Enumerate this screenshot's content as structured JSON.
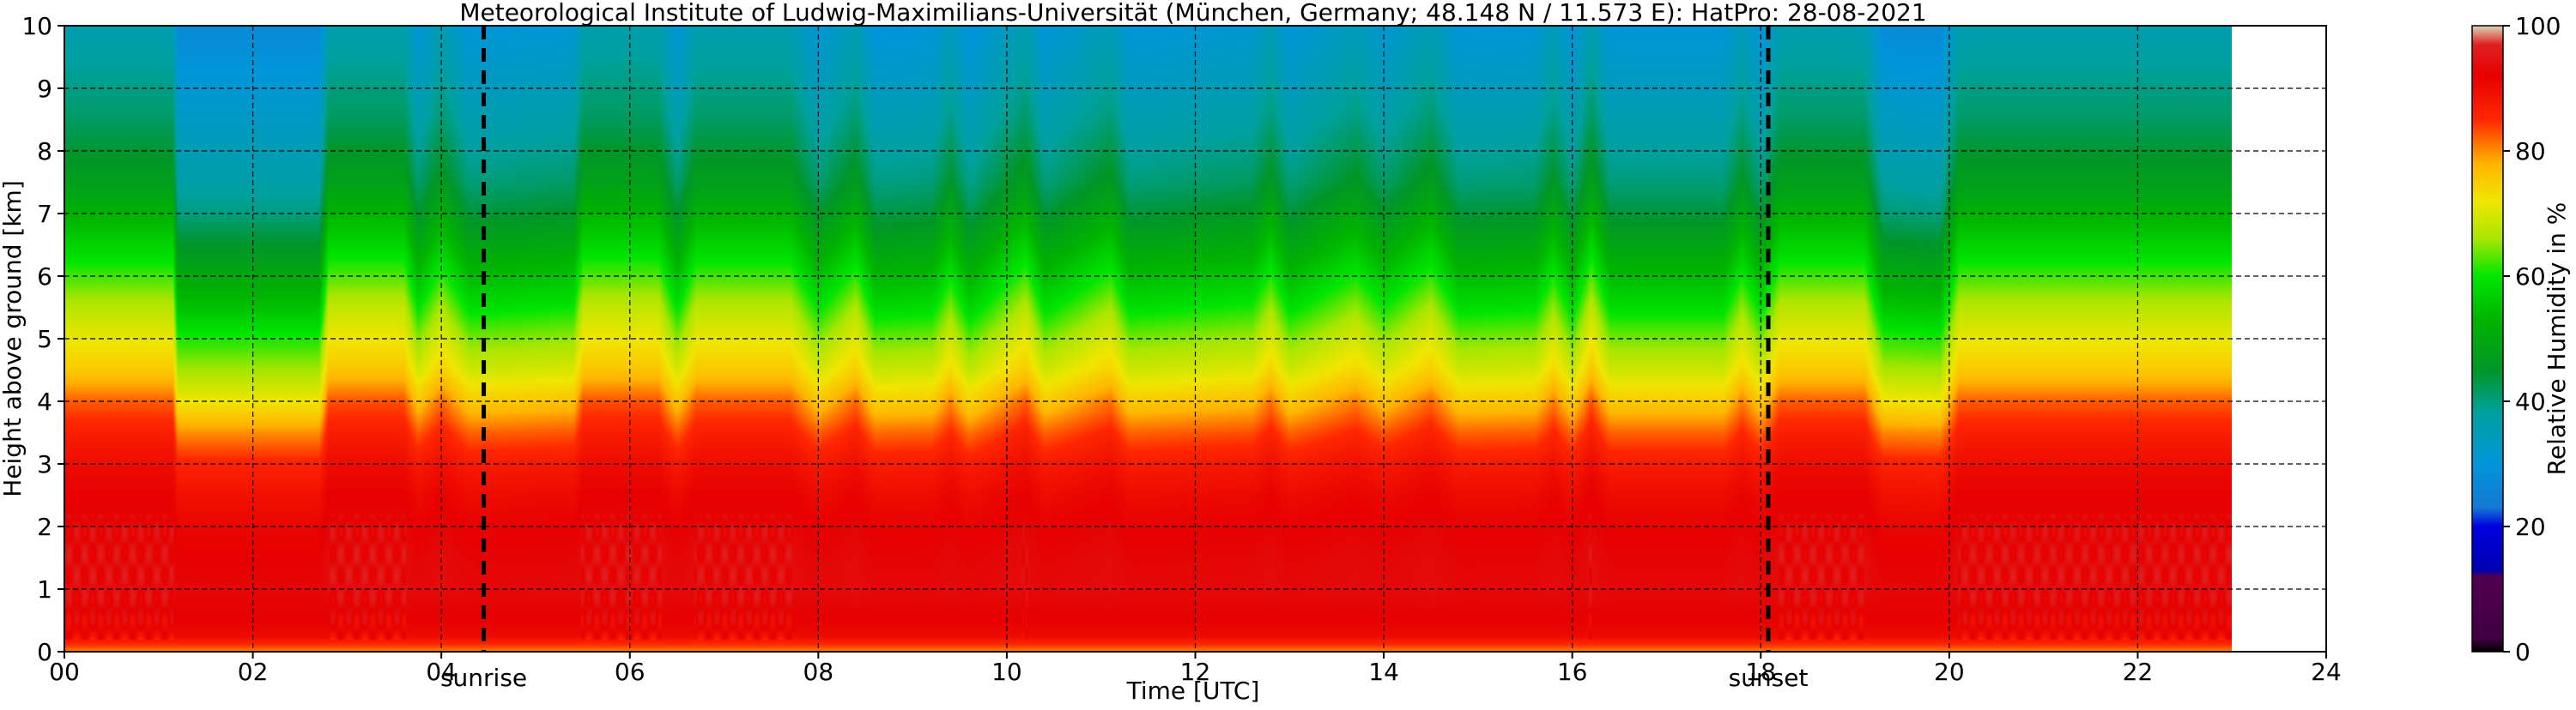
{
  "chart_data": {
    "type": "heatmap",
    "title": "Meteorological Institute of Ludwig-Maximilians-Universität (München, Germany; 48.148 N / 11.573 E):    HatPro: 28-08-2021",
    "xlabel": "Time [UTC]",
    "ylabel": "Height above ground [km]",
    "colorbar_label": "Relative Humidity in %",
    "xlim": [
      0,
      24
    ],
    "ylim": [
      0,
      10
    ],
    "data_extent_hours": [
      0,
      23
    ],
    "xticks": [
      0,
      2,
      4,
      6,
      8,
      10,
      12,
      14,
      16,
      18,
      20,
      22,
      24
    ],
    "xtick_labels": [
      "00",
      "02",
      "04",
      "06",
      "08",
      "10",
      "12",
      "14",
      "16",
      "18",
      "20",
      "22",
      "24"
    ],
    "yticks": [
      0,
      1,
      2,
      3,
      4,
      5,
      6,
      7,
      8,
      9,
      10
    ],
    "ytick_labels": [
      "0",
      "1",
      "2",
      "3",
      "4",
      "5",
      "6",
      "7",
      "8",
      "9",
      "10"
    ],
    "grid": true,
    "colorbar_ticks": [
      0,
      20,
      40,
      60,
      80,
      100
    ],
    "colorbar_tick_labels": [
      "0",
      "20",
      "40",
      "60",
      "80",
      "100"
    ],
    "colorscale": [
      {
        "value": 0,
        "color": "#000000"
      },
      {
        "value": 2,
        "color": "#400040"
      },
      {
        "value": 12,
        "color": "#500050"
      },
      {
        "value": 13,
        "color": "#0000b0"
      },
      {
        "value": 20,
        "color": "#0000e0"
      },
      {
        "value": 23,
        "color": "#1478d2"
      },
      {
        "value": 30,
        "color": "#0096d8"
      },
      {
        "value": 38,
        "color": "#00a0a0"
      },
      {
        "value": 45,
        "color": "#009628"
      },
      {
        "value": 53,
        "color": "#00b400"
      },
      {
        "value": 60,
        "color": "#00e600"
      },
      {
        "value": 66,
        "color": "#a8e600"
      },
      {
        "value": 72,
        "color": "#f0e600"
      },
      {
        "value": 78,
        "color": "#ffb400"
      },
      {
        "value": 85,
        "color": "#ff2800"
      },
      {
        "value": 92,
        "color": "#e60000"
      },
      {
        "value": 97,
        "color": "#e02020"
      },
      {
        "value": 100,
        "color": "#d8d8b8"
      }
    ],
    "markers": [
      {
        "label": "sunrise",
        "time_hours": 4.45
      },
      {
        "label": "sunset",
        "time_hours": 18.08
      }
    ],
    "profile_heights_km": [
      0,
      0.25,
      0.5,
      1,
      1.5,
      2,
      2.5,
      3,
      3.5,
      4,
      4.5,
      5,
      5.5,
      6,
      6.5,
      7,
      7.5,
      8,
      8.5,
      9,
      9.5,
      10
    ],
    "moist_profile_rh": [
      80,
      90,
      92,
      94,
      94,
      93,
      92,
      90,
      87,
      83,
      76,
      72,
      68,
      63,
      58,
      53,
      48,
      45,
      42,
      40,
      38,
      36
    ],
    "dry_profile_rh": [
      80,
      90,
      92,
      93,
      92,
      91,
      89,
      86,
      80,
      72,
      66,
      61,
      55,
      50,
      45,
      40,
      37,
      35,
      33,
      31,
      29,
      27
    ],
    "humidity_time_series": [
      {
        "t": 0.0,
        "moist": 0.95
      },
      {
        "t": 1.15,
        "moist": 0.95
      },
      {
        "t": 1.2,
        "moist": 0.0
      },
      {
        "t": 2.7,
        "moist": 0.0
      },
      {
        "t": 2.8,
        "moist": 1.0
      },
      {
        "t": 3.6,
        "moist": 1.0
      },
      {
        "t": 3.75,
        "moist": 0.35
      },
      {
        "t": 4.0,
        "moist": 0.9
      },
      {
        "t": 4.3,
        "moist": 0.3
      },
      {
        "t": 5.4,
        "moist": 0.4
      },
      {
        "t": 5.5,
        "moist": 1.0
      },
      {
        "t": 6.3,
        "moist": 1.0
      },
      {
        "t": 6.5,
        "moist": 0.35
      },
      {
        "t": 6.7,
        "moist": 0.95
      },
      {
        "t": 7.7,
        "moist": 0.95
      },
      {
        "t": 8.0,
        "moist": 0.35
      },
      {
        "t": 8.4,
        "moist": 0.9
      },
      {
        "t": 8.6,
        "moist": 0.25
      },
      {
        "t": 9.2,
        "moist": 0.3
      },
      {
        "t": 9.4,
        "moist": 0.75
      },
      {
        "t": 9.6,
        "moist": 0.2
      },
      {
        "t": 10.2,
        "moist": 0.95
      },
      {
        "t": 10.4,
        "moist": 0.3
      },
      {
        "t": 11.1,
        "moist": 0.85
      },
      {
        "t": 11.3,
        "moist": 0.3
      },
      {
        "t": 12.6,
        "moist": 0.45
      },
      {
        "t": 12.8,
        "moist": 0.85
      },
      {
        "t": 13.0,
        "moist": 0.3
      },
      {
        "t": 13.7,
        "moist": 0.8
      },
      {
        "t": 14.0,
        "moist": 0.4
      },
      {
        "t": 14.5,
        "moist": 0.9
      },
      {
        "t": 14.8,
        "moist": 0.3
      },
      {
        "t": 15.6,
        "moist": 0.35
      },
      {
        "t": 15.8,
        "moist": 0.8
      },
      {
        "t": 16.0,
        "moist": 0.25
      },
      {
        "t": 16.2,
        "moist": 1.0
      },
      {
        "t": 16.4,
        "moist": 0.3
      },
      {
        "t": 17.6,
        "moist": 0.3
      },
      {
        "t": 17.8,
        "moist": 0.8
      },
      {
        "t": 18.0,
        "moist": 0.3
      },
      {
        "t": 18.2,
        "moist": 0.95
      },
      {
        "t": 19.1,
        "moist": 0.95
      },
      {
        "t": 19.3,
        "moist": 0.05
      },
      {
        "t": 19.9,
        "moist": 0.0
      },
      {
        "t": 20.1,
        "moist": 0.95
      },
      {
        "t": 23.0,
        "moist": 0.95
      }
    ]
  }
}
